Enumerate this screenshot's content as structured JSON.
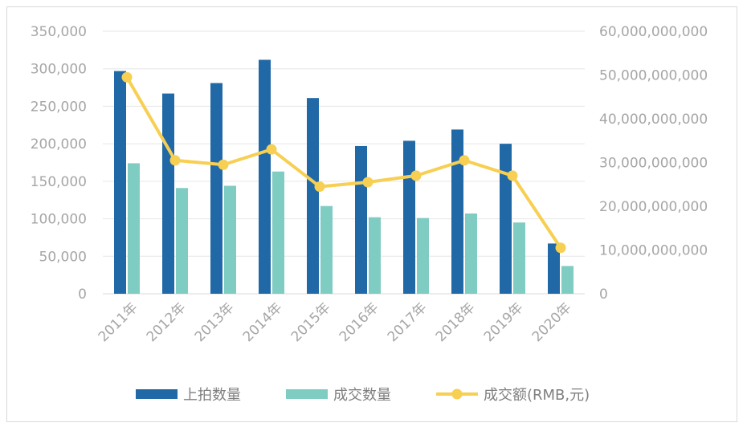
{
  "chart_data": {
    "type": "bar",
    "categories": [
      "2011年",
      "2012年",
      "2013年",
      "2014年",
      "2015年",
      "2016年",
      "2017年",
      "2018年",
      "2019年",
      "2020年"
    ],
    "series": [
      {
        "name": "上拍数量",
        "kind": "bar",
        "axis": "left",
        "color": "#2169a6",
        "values": [
          297000,
          267000,
          281000,
          312000,
          261000,
          197000,
          204000,
          219000,
          200000,
          67000
        ]
      },
      {
        "name": "成交数量",
        "kind": "bar",
        "axis": "left",
        "color": "#7fccc2",
        "values": [
          174000,
          141000,
          144000,
          163000,
          117000,
          102000,
          101000,
          107000,
          95000,
          37000
        ]
      },
      {
        "name": "成交额(RMB,元)",
        "kind": "line",
        "axis": "right",
        "color": "#f7cf53",
        "values": [
          49500000000,
          30500000000,
          29500000000,
          33000000000,
          24500000000,
          25500000000,
          27000000000,
          30500000000,
          27000000000,
          10500000000
        ]
      }
    ],
    "y_left": {
      "ylim": [
        0,
        350000
      ],
      "ticks": [
        "0",
        "50,000",
        "100,000",
        "150,000",
        "200,000",
        "250,000",
        "300,000",
        "350,000"
      ]
    },
    "y_right": {
      "ylim": [
        0,
        60000000000
      ],
      "ticks": [
        "0",
        "10,000,000,000",
        "20,000,000,000",
        "30,000,000,000",
        "40,000,000,000",
        "50,000,000,000",
        "60,000,000,000"
      ]
    },
    "grid": true,
    "legend_position": "bottom"
  }
}
